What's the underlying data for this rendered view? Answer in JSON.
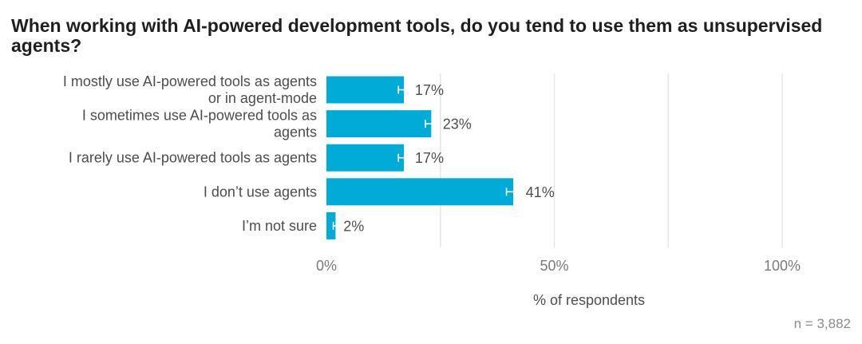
{
  "chart_data": {
    "type": "bar",
    "orientation": "horizontal",
    "title": "When working with AI-powered development tools, do you tend to use them as unsupervised agents?",
    "categories": [
      [
        "I mostly use AI-powered tools as agents",
        "or in agent-mode"
      ],
      [
        "I sometimes use AI-powered tools as",
        "agents"
      ],
      [
        "I rarely use AI-powered tools as agents"
      ],
      [
        "I don’t use agents"
      ],
      [
        "I’m not sure"
      ]
    ],
    "values": [
      17,
      23,
      17,
      41,
      2
    ],
    "value_labels": [
      "17%",
      "23%",
      "17%",
      "41%",
      "2%"
    ],
    "error_margin": [
      1.2,
      1.3,
      1.2,
      1.5,
      0.5
    ],
    "xlabel": "% of respondents",
    "xlim": [
      0,
      100
    ],
    "xticks": [
      0,
      50,
      100
    ],
    "xtick_labels": [
      "0%",
      "50%",
      "100%"
    ],
    "gridlines": [
      25,
      50,
      75,
      100
    ],
    "bar_color": "#00acd7",
    "error_color": "#ffffff",
    "grid_color": "#e6e6e6",
    "note": "n = 3,882"
  }
}
